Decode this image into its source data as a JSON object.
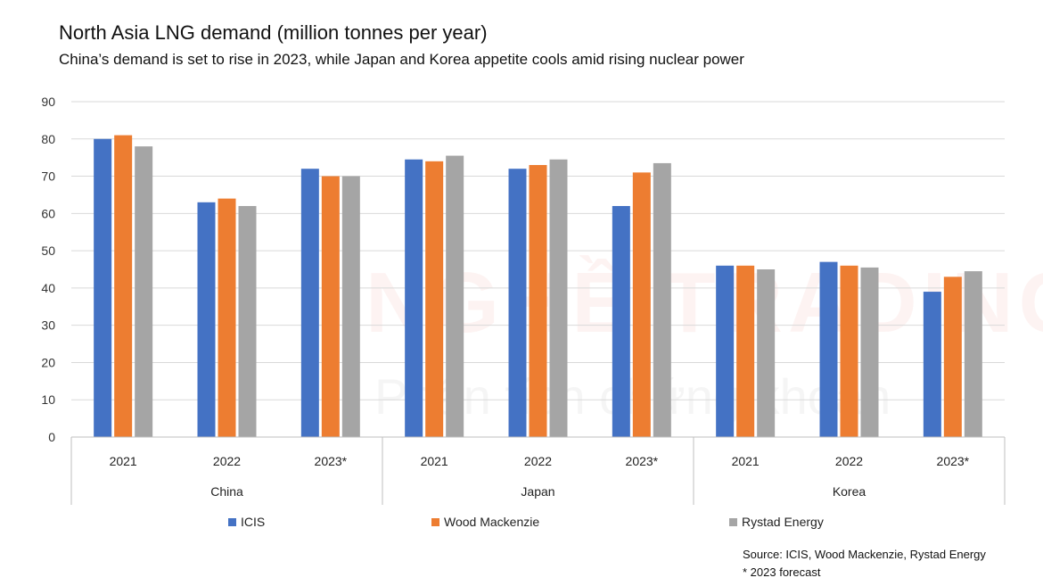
{
  "chart_data": {
    "type": "bar",
    "title": "North Asia LNG demand (million tonnes per year)",
    "subtitle": "China’s demand is set to rise in 2023, while Japan and Korea appetite cools amid rising nuclear power",
    "groups": [
      {
        "name": "China",
        "categories": [
          "2021",
          "2022",
          "2023*"
        ]
      },
      {
        "name": "Japan",
        "categories": [
          "2021",
          "2022",
          "2023*"
        ]
      },
      {
        "name": "Korea",
        "categories": [
          "2021",
          "2022",
          "2023*"
        ]
      }
    ],
    "series": [
      {
        "name": "ICIS",
        "color": "#4472C4",
        "values": [
          80,
          63,
          72,
          74.5,
          72,
          62,
          46,
          47,
          39
        ]
      },
      {
        "name": "Wood Mackenzie",
        "color": "#ED7D31",
        "values": [
          81,
          64,
          70,
          74,
          73,
          71,
          46,
          46,
          43
        ]
      },
      {
        "name": "Rystad Energy",
        "color": "#A5A5A5",
        "values": [
          78,
          62,
          70,
          75.5,
          74.5,
          73.5,
          45,
          45.5,
          44.5
        ]
      }
    ],
    "ylim": [
      0,
      90
    ],
    "yticks": [
      0,
      10,
      20,
      30,
      40,
      50,
      60,
      70,
      80,
      90
    ],
    "grid": true,
    "legend_position": "bottom"
  },
  "source": {
    "line1": "Source: ICIS, Wood Mackenzie, Rystad Energy",
    "line2": "* 2023 forecast"
  },
  "watermark": {
    "line1": "NGHỀ TRADING",
    "line2": "Phân tích chứng khoán"
  }
}
